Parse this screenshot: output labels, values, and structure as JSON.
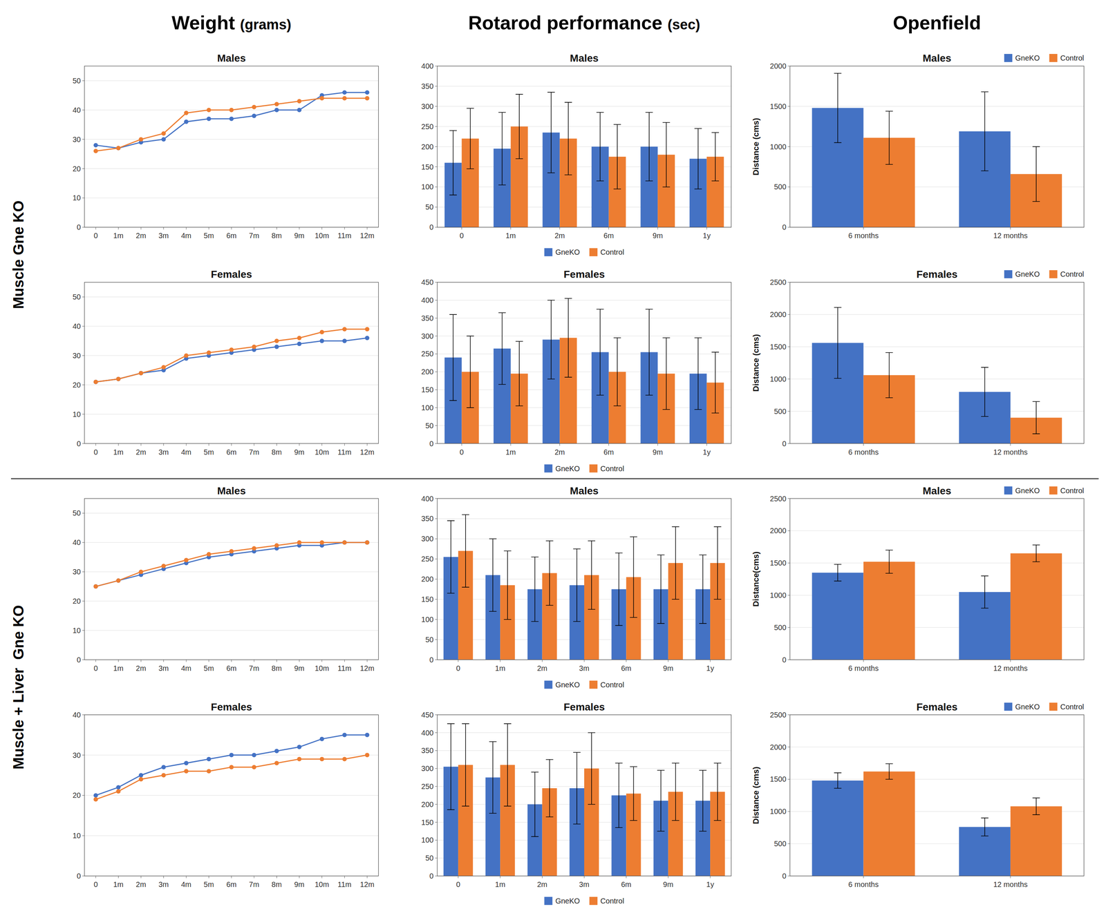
{
  "annotations": [
    "Weight",
    "(grams)",
    "Rotarod performance",
    "(sec)",
    "Openfield",
    "Muscle Gne KO",
    "Muscle + Liver  Gne KO"
  ],
  "chart_data": [
    {
      "type": "line",
      "title": "Males",
      "categories": [
        "0",
        "1m",
        "2m",
        "3m",
        "4m",
        "5m",
        "6m",
        "7m",
        "8m",
        "9m",
        "10m",
        "11m",
        "12m"
      ],
      "series": [
        {
          "color": "#4472C4",
          "marker": "circle",
          "values": [
            28,
            27,
            29,
            30,
            36,
            37,
            37,
            38,
            40,
            40,
            45,
            46,
            46
          ]
        },
        {
          "color": "#ED7D31",
          "marker": "circle",
          "values": [
            26,
            27,
            30,
            32,
            39,
            40,
            40,
            41,
            42,
            43,
            44,
            44,
            44
          ]
        }
      ],
      "ylim": [
        0,
        55
      ],
      "yticks": [
        0,
        10,
        20,
        30,
        40,
        50
      ],
      "grid": true
    },
    {
      "type": "bar",
      "title": "Males",
      "categories": [
        "0",
        "1m",
        "2m",
        "6m",
        "9m",
        "1y"
      ],
      "series": [
        {
          "name": "GneKO",
          "color": "#4472C4",
          "values": [
            160,
            195,
            235,
            200,
            200,
            170
          ],
          "errors": [
            80,
            90,
            100,
            85,
            85,
            75
          ]
        },
        {
          "name": "Control",
          "color": "#ED7D31",
          "values": [
            220,
            250,
            220,
            175,
            180,
            175
          ],
          "errors": [
            75,
            80,
            90,
            80,
            80,
            60
          ]
        }
      ],
      "ylim": [
        0,
        400
      ],
      "yticks": [
        0,
        50,
        100,
        150,
        200,
        250,
        300,
        350,
        400
      ],
      "grid": true,
      "legend": "bottom"
    },
    {
      "type": "bar",
      "title": "Males",
      "y_label": "Distance (cms)",
      "categories": [
        "6 months",
        "12 months"
      ],
      "series": [
        {
          "name": "GneKO",
          "color": "#4472C4",
          "values": [
            1480,
            1190
          ],
          "errors": [
            430,
            490
          ]
        },
        {
          "name": "Control",
          "color": "#ED7D31",
          "values": [
            1110,
            660
          ],
          "errors": [
            330,
            340
          ]
        }
      ],
      "ylim": [
        0,
        2000
      ],
      "yticks": [
        0,
        500,
        1000,
        1500,
        2000
      ],
      "grid": true,
      "legend": "upper right"
    },
    {
      "type": "line",
      "title": "Females",
      "categories": [
        "0",
        "1m",
        "2m",
        "3m",
        "4m",
        "5m",
        "6m",
        "7m",
        "8m",
        "9m",
        "10m",
        "11m",
        "12m"
      ],
      "series": [
        {
          "color": "#4472C4",
          "marker": "circle",
          "values": [
            21,
            22,
            24,
            25,
            29,
            30,
            31,
            32,
            33,
            34,
            35,
            35,
            36
          ]
        },
        {
          "color": "#ED7D31",
          "marker": "circle",
          "values": [
            21,
            22,
            24,
            26,
            30,
            31,
            32,
            33,
            35,
            36,
            38,
            39,
            39
          ]
        }
      ],
      "ylim": [
        0,
        55
      ],
      "yticks": [
        0,
        10,
        20,
        30,
        40,
        50
      ],
      "grid": true
    },
    {
      "type": "bar",
      "title": "Females",
      "categories": [
        "0",
        "1m",
        "2m",
        "6m",
        "9m",
        "1y"
      ],
      "series": [
        {
          "name": "GneKO",
          "color": "#4472C4",
          "values": [
            240,
            265,
            290,
            255,
            255,
            195
          ],
          "errors": [
            120,
            100,
            110,
            120,
            120,
            100
          ]
        },
        {
          "name": "Control",
          "color": "#ED7D31",
          "values": [
            200,
            195,
            295,
            200,
            195,
            170
          ],
          "errors": [
            100,
            90,
            110,
            95,
            100,
            85
          ]
        }
      ],
      "ylim": [
        0,
        450
      ],
      "yticks": [
        0,
        50,
        100,
        150,
        200,
        250,
        300,
        350,
        400,
        450
      ],
      "grid": true,
      "legend": "bottom"
    },
    {
      "type": "bar",
      "title": "Females",
      "y_label": "Distance (cms)",
      "categories": [
        "6 months",
        "12 months"
      ],
      "series": [
        {
          "name": "GneKO",
          "color": "#4472C4",
          "values": [
            1560,
            800
          ],
          "errors": [
            550,
            380
          ]
        },
        {
          "name": "Control",
          "color": "#ED7D31",
          "values": [
            1060,
            400
          ],
          "errors": [
            350,
            250
          ]
        }
      ],
      "ylim": [
        0,
        2500
      ],
      "yticks": [
        0,
        500,
        1000,
        1500,
        2000,
        2500
      ],
      "grid": true,
      "legend": "upper right"
    },
    {
      "type": "line",
      "title": "Males",
      "categories": [
        "0",
        "1m",
        "2m",
        "3m",
        "4m",
        "5m",
        "6m",
        "7m",
        "8m",
        "9m",
        "10m",
        "11m",
        "12m"
      ],
      "series": [
        {
          "color": "#4472C4",
          "marker": "circle",
          "values": [
            25,
            27,
            29,
            31,
            33,
            35,
            36,
            37,
            38,
            39,
            39,
            40,
            40
          ]
        },
        {
          "color": "#ED7D31",
          "marker": "circle",
          "values": [
            25,
            27,
            30,
            32,
            34,
            36,
            37,
            38,
            39,
            40,
            40,
            40,
            40
          ]
        }
      ],
      "ylim": [
        0,
        55
      ],
      "yticks": [
        0,
        10,
        20,
        30,
        40,
        50
      ],
      "grid": true
    },
    {
      "type": "bar",
      "title": "Males",
      "categories": [
        "0",
        "1m",
        "2m",
        "3m",
        "6m",
        "9m",
        "1y"
      ],
      "series": [
        {
          "name": "GneKO",
          "color": "#4472C4",
          "values": [
            255,
            210,
            175,
            185,
            175,
            175,
            175
          ],
          "errors": [
            90,
            90,
            80,
            90,
            90,
            85,
            85
          ]
        },
        {
          "name": "Control",
          "color": "#ED7D31",
          "values": [
            270,
            185,
            215,
            210,
            205,
            240,
            240
          ],
          "errors": [
            90,
            85,
            80,
            85,
            100,
            90,
            90
          ]
        }
      ],
      "ylim": [
        0,
        400
      ],
      "yticks": [
        0,
        50,
        100,
        150,
        200,
        250,
        300,
        350,
        400
      ],
      "grid": true,
      "legend": "bottom"
    },
    {
      "type": "bar",
      "title": "Males",
      "y_label": "Distance(cms)",
      "categories": [
        "6 months",
        "12 months"
      ],
      "series": [
        {
          "name": "GneKO",
          "color": "#4472C4",
          "values": [
            1350,
            1050
          ],
          "errors": [
            130,
            250
          ]
        },
        {
          "name": "Control",
          "color": "#ED7D31",
          "values": [
            1520,
            1650
          ],
          "errors": [
            180,
            130
          ]
        }
      ],
      "ylim": [
        0,
        2500
      ],
      "yticks": [
        0,
        500,
        1000,
        1500,
        2000,
        2500
      ],
      "grid": true,
      "legend": "upper right"
    },
    {
      "type": "line",
      "title": "Females",
      "categories": [
        "0",
        "1m",
        "2m",
        "3m",
        "4m",
        "5m",
        "6m",
        "7m",
        "8m",
        "9m",
        "10m",
        "11m",
        "12m"
      ],
      "series": [
        {
          "color": "#4472C4",
          "marker": "circle",
          "values": [
            20,
            22,
            25,
            27,
            28,
            29,
            30,
            30,
            31,
            32,
            34,
            35,
            35
          ]
        },
        {
          "color": "#ED7D31",
          "marker": "circle",
          "values": [
            19,
            21,
            24,
            25,
            26,
            26,
            27,
            27,
            28,
            29,
            29,
            29,
            30
          ]
        }
      ],
      "ylim": [
        0,
        40
      ],
      "yticks": [
        0,
        10,
        20,
        30,
        40
      ],
      "grid": true
    },
    {
      "type": "bar",
      "title": "Females",
      "categories": [
        "0",
        "1m",
        "2m",
        "3m",
        "6m",
        "9m",
        "1y"
      ],
      "series": [
        {
          "name": "GneKO",
          "color": "#4472C4",
          "values": [
            305,
            275,
            200,
            245,
            225,
            210,
            210
          ],
          "errors": [
            120,
            100,
            90,
            100,
            90,
            85,
            85
          ]
        },
        {
          "name": "Control",
          "color": "#ED7D31",
          "values": [
            310,
            310,
            245,
            300,
            230,
            235,
            235
          ],
          "errors": [
            115,
            115,
            80,
            100,
            75,
            80,
            80
          ]
        }
      ],
      "ylim": [
        0,
        450
      ],
      "yticks": [
        0,
        50,
        100,
        150,
        200,
        250,
        300,
        350,
        400,
        450
      ],
      "grid": true,
      "legend": "bottom"
    },
    {
      "type": "bar",
      "title": "Females",
      "y_label": "Distance (cms)",
      "categories": [
        "6 months",
        "12 months"
      ],
      "series": [
        {
          "name": "GneKO",
          "color": "#4472C4",
          "values": [
            1480,
            760
          ],
          "errors": [
            120,
            140
          ]
        },
        {
          "name": "Control",
          "color": "#ED7D31",
          "values": [
            1620,
            1080
          ],
          "errors": [
            120,
            130
          ]
        }
      ],
      "ylim": [
        0,
        2500
      ],
      "yticks": [
        0,
        500,
        1000,
        1500,
        2000,
        2500
      ],
      "grid": true,
      "legend": "upper right"
    }
  ]
}
